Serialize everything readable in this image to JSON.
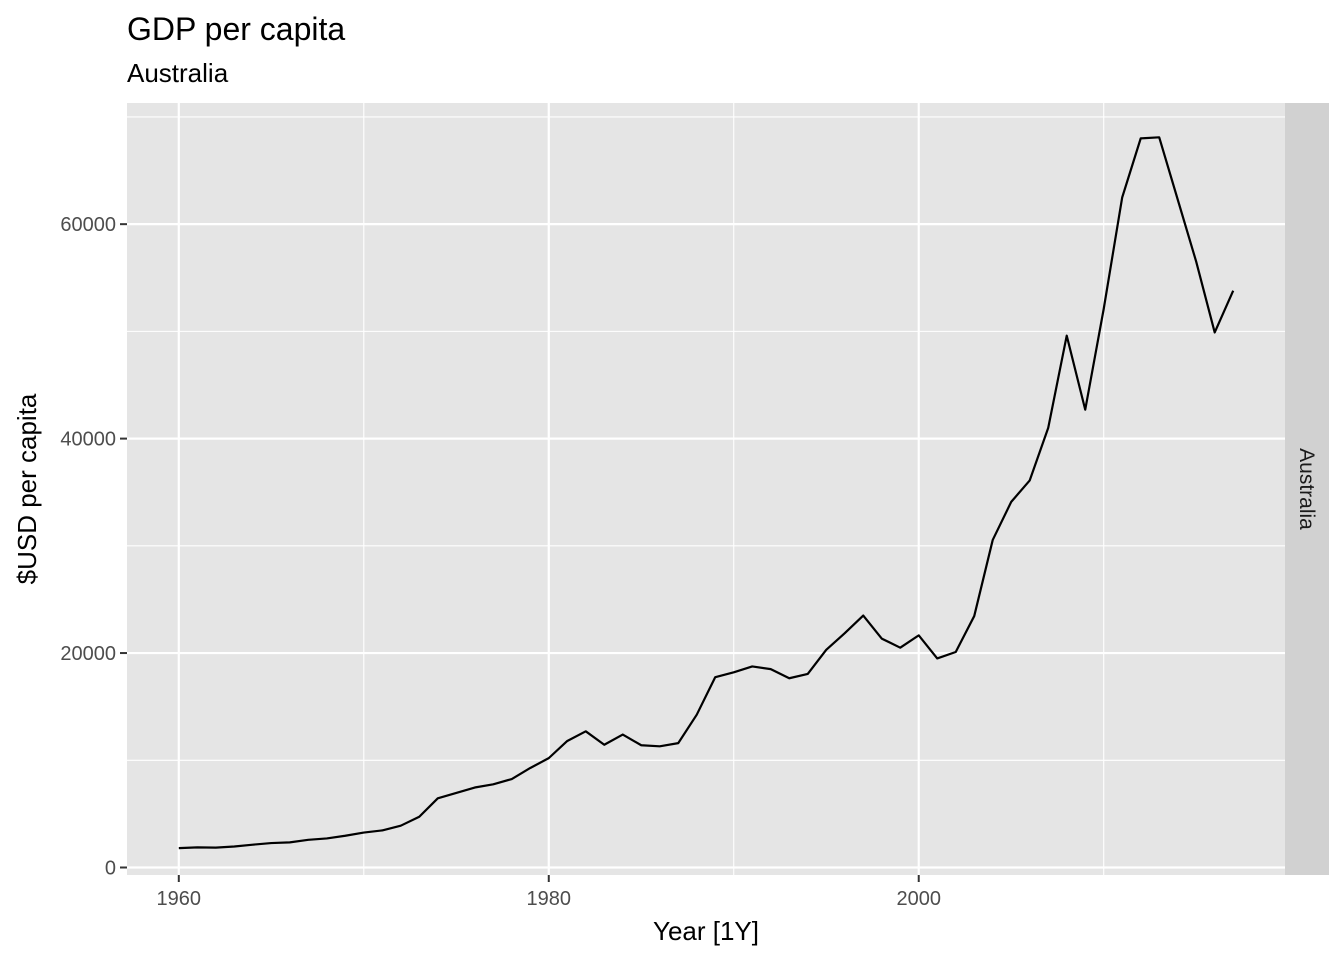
{
  "chart_data": {
    "type": "line",
    "title": "GDP per capita",
    "subtitle": "Australia",
    "xlabel": "Year [1Y]",
    "ylabel": "$USD per capita",
    "facet_label": "Australia",
    "xlim": [
      1957.2,
      2019.8
    ],
    "ylim": [
      -700,
      71300
    ],
    "x_ticks": [
      1960,
      1980,
      2000
    ],
    "x_tick_labels": [
      "1960",
      "1980",
      "2000"
    ],
    "y_ticks": [
      0,
      20000,
      40000,
      60000
    ],
    "y_tick_labels": [
      "0",
      "20000",
      "40000",
      "60000"
    ],
    "grid": true,
    "colors": {
      "panel": "#e5e5e5",
      "grid": "#ffffff",
      "strip": "#d1d1d1",
      "line": "#000000"
    },
    "series": [
      {
        "x": [
          1960,
          1961,
          1962,
          1963,
          1964,
          1965,
          1966,
          1967,
          1968,
          1969,
          1970,
          1971,
          1972,
          1973,
          1974,
          1975,
          1976,
          1977,
          1978,
          1979,
          1980,
          1981,
          1982,
          1983,
          1984,
          1985,
          1986,
          1987,
          1988,
          1989,
          1990,
          1991,
          1992,
          1993,
          1994,
          1995,
          1996,
          1997,
          1998,
          1999,
          2000,
          2001,
          2002,
          2003,
          2004,
          2005,
          2006,
          2007,
          2008,
          2009,
          2010,
          2011,
          2012,
          2013,
          2014,
          2015,
          2016,
          2017
        ],
        "y": [
          1810,
          1880,
          1850,
          1960,
          2130,
          2280,
          2340,
          2580,
          2710,
          2960,
          3260,
          3460,
          3900,
          4730,
          6450,
          6950,
          7460,
          7760,
          8250,
          9280,
          10200,
          11800,
          12700,
          11450,
          12400,
          11400,
          11300,
          11600,
          14250,
          17750,
          18200,
          18750,
          18500,
          17650,
          18050,
          20300,
          21850,
          23500,
          21350,
          20500,
          21650,
          19500,
          20100,
          23450,
          30550,
          34100,
          36100,
          41000,
          49600,
          42700,
          52100,
          62500,
          68000,
          68100,
          62300,
          56500,
          49900,
          53800
        ]
      }
    ]
  }
}
